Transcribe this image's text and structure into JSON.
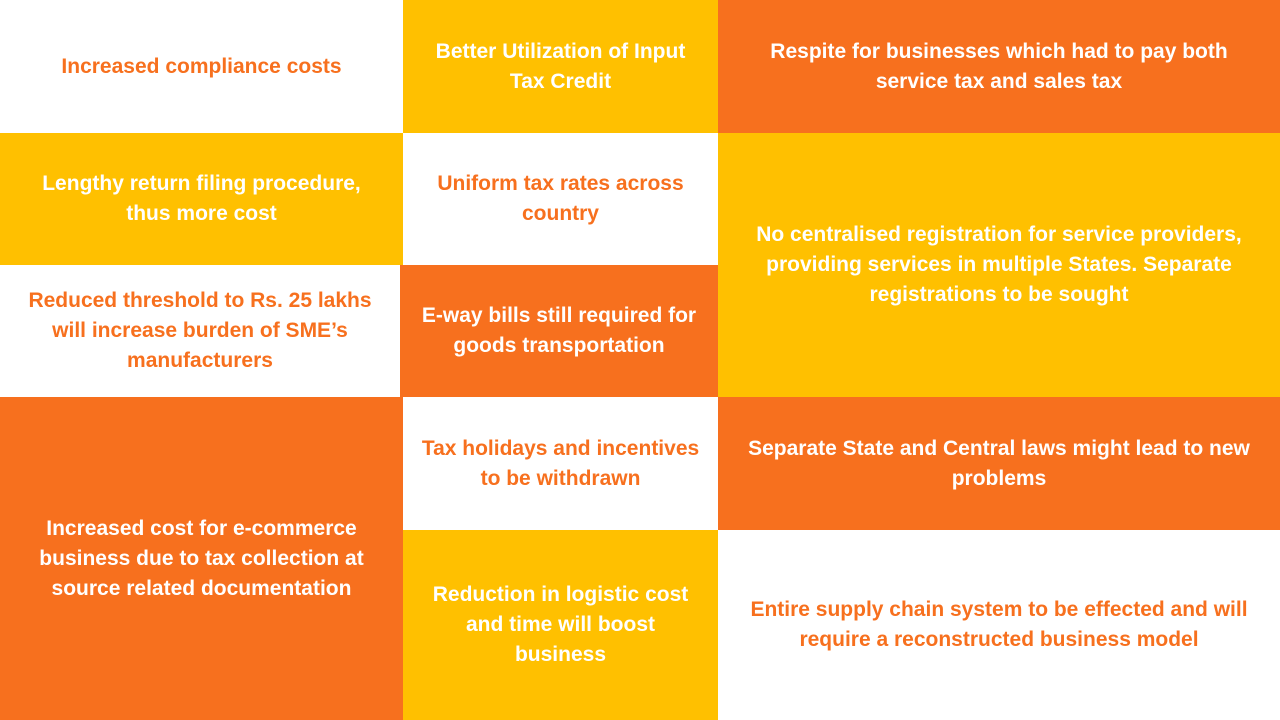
{
  "tiles": {
    "increased_compliance_costs": "Increased compliance costs",
    "lengthy_return_filing": "Lengthy return filing procedure, thus more cost",
    "reduced_threshold": "Reduced threshold to Rs. 25 lakhs will increase burden of SME’s manufacturers",
    "ecommerce_cost": "Increased cost for e-commerce business due to tax collection at source related documentation",
    "input_tax_credit": "Better Utilization of Input Tax Credit",
    "uniform_tax_rates": "Uniform tax rates across country",
    "eway_bills": "E-way bills still required for goods transportation",
    "tax_holidays": "Tax holidays and incentives to be withdrawn",
    "logistic_cost": "Reduction in logistic cost and time will boost business",
    "respite_businesses": "Respite for businesses which had to pay both service tax and sales tax",
    "no_centralised_registration": "No centralised registration for service providers, providing services in multiple States. Separate registrations to be sought",
    "separate_laws": "Separate State and Central laws might lead to new problems",
    "supply_chain": "Entire supply chain system to be effected and will require a reconstructed business model"
  },
  "colors": {
    "orange": "#f7701e",
    "gold": "#ffc000",
    "white": "#ffffff"
  }
}
